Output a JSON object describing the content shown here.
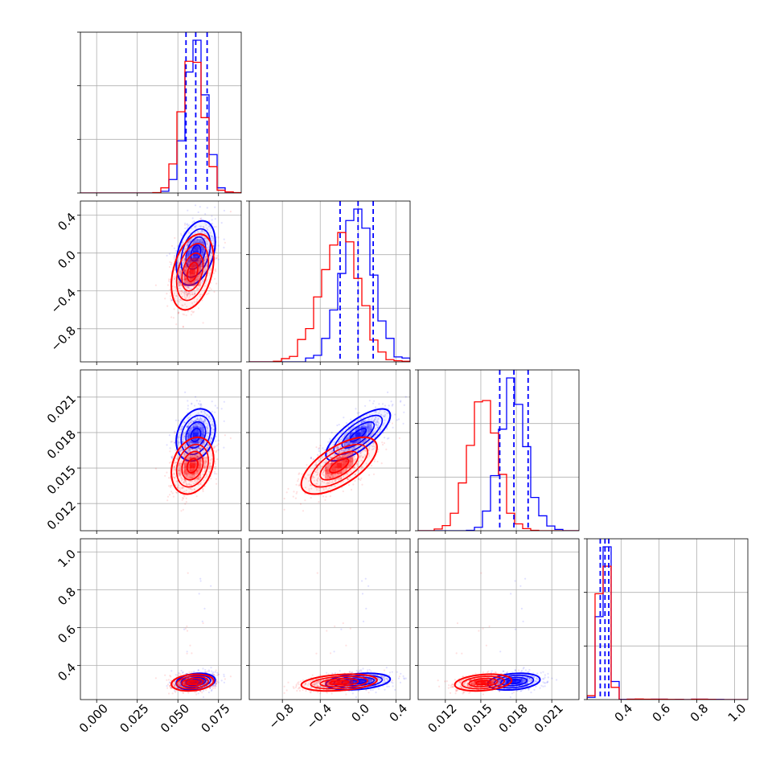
{
  "chart_data": {
    "type": "corner",
    "title": "",
    "parameters": [
      "",
      "",
      "",
      ""
    ],
    "ranges": [
      [
        -0.01,
        0.089
      ],
      [
        -1.15,
        0.55
      ],
      [
        0.0097,
        0.0233
      ],
      [
        0.22,
        1.07
      ]
    ],
    "ticks": [
      [
        "0.000",
        "0.025",
        "0.050",
        "0.075"
      ],
      [
        "−0.8",
        "−0.4",
        "0.0",
        "0.4"
      ],
      [
        "0.012",
        "0.015",
        "0.018",
        "0.021"
      ],
      [
        "0.4",
        "0.6",
        "0.8",
        "1.0"
      ]
    ],
    "tick_values": [
      [
        0.0,
        0.025,
        0.05,
        0.075
      ],
      [
        -0.8,
        -0.4,
        0.0,
        0.4
      ],
      [
        0.012,
        0.015,
        0.018,
        0.021
      ],
      [
        0.4,
        0.6,
        0.8,
        1.0
      ]
    ],
    "grid": true,
    "series": [
      {
        "color": "#0000ff",
        "means": [
          0.061,
          0.0,
          0.0178,
          0.315
        ],
        "sigmas": [
          0.006,
          0.17,
          0.0011,
          0.022
        ],
        "quantiles": [
          [
            0.055,
            0.061,
            0.068
          ],
          [
            -0.19,
            0.0,
            0.16
          ],
          [
            0.0166,
            0.0178,
            0.019
          ],
          [
            0.29,
            0.315,
            0.335
          ]
        ],
        "correlations": {
          "0-1": 0.35,
          "0-2": 0.25,
          "1-2": 0.75,
          "0-3": 0.2,
          "1-3": 0.3,
          "2-3": 0.25
        }
      },
      {
        "color": "#ff0000",
        "means": [
          0.059,
          -0.2,
          0.0152,
          0.31
        ],
        "sigmas": [
          0.0065,
          0.2,
          0.0012,
          0.022
        ],
        "quantiles": [
          [
            0.0545,
            0.059,
            0.0645
          ],
          [
            -0.4,
            -0.2,
            0.0
          ],
          [
            0.014,
            0.0152,
            0.0164
          ],
          [
            0.285,
            0.31,
            0.33
          ]
        ],
        "correlations": {
          "0-1": 0.35,
          "0-2": 0.25,
          "1-2": 0.65,
          "0-3": 0.2,
          "1-3": 0.3,
          "2-3": 0.25
        }
      }
    ]
  }
}
